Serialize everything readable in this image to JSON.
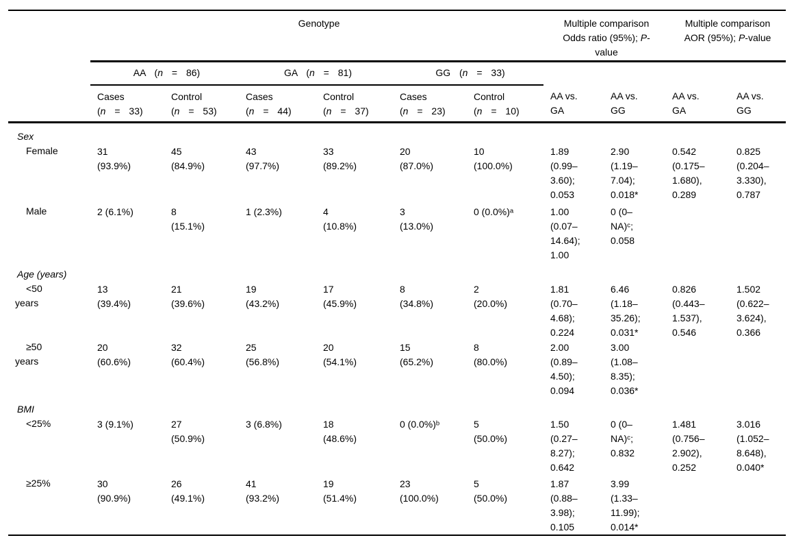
{
  "table": {
    "header": {
      "genotype_label": "Genotype",
      "or_header": [
        "Multiple comparison",
        "Odds ratio (95%); P-",
        "value"
      ],
      "aor_header": [
        "Multiple comparison",
        "AOR (95%); P-value"
      ],
      "groups": [
        "AA (n = 86)",
        "GA (n = 81)",
        "GG (n = 33)"
      ],
      "subcols": [
        [
          "Cases",
          "(n = 33)"
        ],
        [
          "Control",
          "(n = 53)"
        ],
        [
          "Cases",
          "(n = 44)"
        ],
        [
          "Control",
          "(n = 37)"
        ],
        [
          "Cases",
          "(n = 23)"
        ],
        [
          "Control",
          "(n = 10)"
        ],
        [
          "AA vs.",
          "GA"
        ],
        [
          "AA vs.",
          "GG"
        ],
        [
          "AA vs.",
          "GA"
        ],
        [
          "AA vs.",
          "GG"
        ]
      ]
    },
    "sections": [
      {
        "label": "Sex",
        "rows": [
          {
            "label": [
              "Female"
            ],
            "cells": [
              [
                "31",
                "(93.9%)"
              ],
              [
                "45",
                "(84.9%)"
              ],
              [
                "43",
                "(97.7%)"
              ],
              [
                "33",
                "(89.2%)"
              ],
              [
                "20",
                "(87.0%)"
              ],
              [
                "10",
                "(100.0%)"
              ],
              [
                "1.89",
                "(0.99–",
                "3.60);",
                "0.053"
              ],
              [
                "2.90",
                "(1.19–",
                "7.04);",
                "0.018*"
              ],
              [
                "0.542",
                "(0.175–",
                "1.680),",
                "0.289"
              ],
              [
                "0.825",
                "(0.204–",
                "3.330),",
                "0.787"
              ]
            ]
          },
          {
            "label": [
              "Male"
            ],
            "cells": [
              [
                "2 (6.1%)"
              ],
              [
                "8",
                "(15.1%)"
              ],
              [
                "1 (2.3%)"
              ],
              [
                "4",
                "(10.8%)"
              ],
              [
                "3",
                "(13.0%)"
              ],
              [
                "0 (0.0%)ᵃ"
              ],
              [
                "1.00",
                "(0.07–",
                "14.64);",
                "1.00"
              ],
              [
                "0 (0–",
                "NA)ᶜ;",
                "0.058"
              ],
              [],
              []
            ]
          }
        ]
      },
      {
        "label": "Age (years)",
        "rows": [
          {
            "label": [
              "<50",
              "years"
            ],
            "cells": [
              [
                "13",
                "(39.4%)"
              ],
              [
                "21",
                "(39.6%)"
              ],
              [
                "19",
                "(43.2%)"
              ],
              [
                "17",
                "(45.9%)"
              ],
              [
                "8",
                "(34.8%)"
              ],
              [
                "2",
                "(20.0%)"
              ],
              [
                "1.81",
                "(0.70–",
                "4.68);",
                "0.224"
              ],
              [
                "6.46",
                "(1.18–",
                "35.26);",
                "0.031*"
              ],
              [
                "0.826",
                "(0.443–",
                "1.537),",
                "0.546"
              ],
              [
                "1.502",
                "(0.622–",
                "3.624),",
                "0.366"
              ]
            ]
          },
          {
            "label": [
              "≥50",
              "years"
            ],
            "cells": [
              [
                "20",
                "(60.6%)"
              ],
              [
                "32",
                "(60.4%)"
              ],
              [
                "25",
                "(56.8%)"
              ],
              [
                "20",
                "(54.1%)"
              ],
              [
                "15",
                "(65.2%)"
              ],
              [
                "8",
                "(80.0%)"
              ],
              [
                "2.00",
                "(0.89–",
                "4.50);",
                "0.094"
              ],
              [
                "3.00",
                "(1.08–",
                "8.35);",
                "0.036*"
              ],
              [],
              []
            ]
          }
        ]
      },
      {
        "label": "BMI",
        "rows": [
          {
            "label": [
              "<25%"
            ],
            "cells": [
              [
                "3 (9.1%)"
              ],
              [
                "27",
                "(50.9%)"
              ],
              [
                "3 (6.8%)"
              ],
              [
                "18",
                "(48.6%)"
              ],
              [
                "0 (0.0%)ᵇ"
              ],
              [
                "5",
                "(50.0%)"
              ],
              [
                "1.50",
                "(0.27–",
                "8.27);",
                "0.642"
              ],
              [
                "0 (0–",
                "NA)ᶜ;",
                "0.832"
              ],
              [
                "1.481",
                "(0.756–",
                "2.902),",
                "0.252"
              ],
              [
                "3.016",
                "(1.052–",
                "8.648),",
                "0.040*"
              ]
            ]
          },
          {
            "label": [
              "≥25%"
            ],
            "cells": [
              [
                "30",
                "(90.9%)"
              ],
              [
                "26",
                "(49.1%)"
              ],
              [
                "41",
                "(93.2%)"
              ],
              [
                "19",
                "(51.4%)"
              ],
              [
                "23",
                "(100.0%)"
              ],
              [
                "5",
                "(50.0%)"
              ],
              [
                "1.87",
                "(0.88–",
                "3.98);",
                "0.105"
              ],
              [
                "3.99",
                "(1.33–",
                "11.99);",
                "0.014*"
              ],
              [],
              []
            ]
          }
        ]
      }
    ]
  }
}
